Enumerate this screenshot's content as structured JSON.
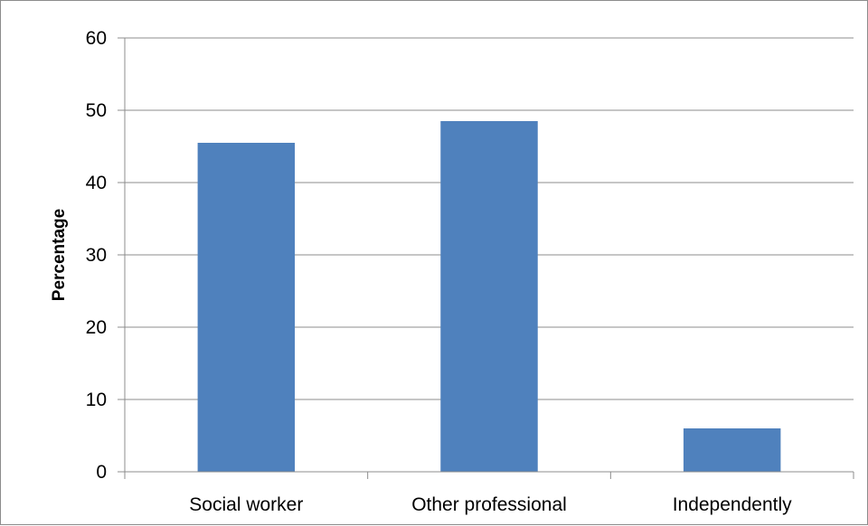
{
  "chart_data": {
    "type": "bar",
    "title": "",
    "xlabel": "",
    "ylabel": "Percentage",
    "categories": [
      "Social worker",
      "Other professional",
      "Independently"
    ],
    "values": [
      45.5,
      48.5,
      6
    ],
    "ylim": [
      0,
      60
    ],
    "yticks": [
      0,
      10,
      20,
      30,
      40,
      50,
      60
    ],
    "grid": true,
    "legend": "none",
    "bar_color": "#4F81BD",
    "grid_color": "#8C8C8C"
  }
}
